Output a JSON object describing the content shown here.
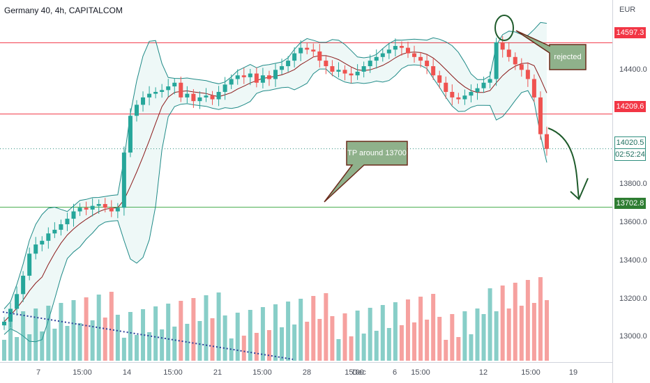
{
  "header": {
    "title": "Germany 40, 4h, CAPITALCOM"
  },
  "currency": "EUR",
  "colors": {
    "up": "#26a69a",
    "down": "#ef5350",
    "support": "#4caf50",
    "resistance": "#f23645",
    "band": "#1f8a87",
    "basis": "#8b1a1a",
    "callout": "#8fb18b"
  },
  "annotations": {
    "rejected": "rejected",
    "tp": "TP around 13700"
  },
  "price_tags": {
    "resistance_high": "14597.3",
    "resistance_mid": "14209.6",
    "last_price": "14020.5",
    "countdown": "02:52:24",
    "support_target": "13702.8"
  },
  "chart_data": {
    "type": "candlestick",
    "title": "Germany 40, 4h, CAPITALCOM",
    "y_axis_label": "EUR",
    "y_ticks": [
      "14400.0",
      "13800.0",
      "13600.0",
      "13400.0",
      "13200.0",
      "13000.0"
    ],
    "x_ticks": [
      "7",
      "15:00",
      "14",
      "15:00",
      "21",
      "15:00",
      "28",
      "15:00",
      "Dec",
      "6",
      "15:00",
      "12",
      "15:00",
      "19"
    ],
    "ylim": [
      12860,
      14830
    ],
    "horizontal_levels": [
      {
        "value": 14597.3,
        "kind": "resistance"
      },
      {
        "value": 14209.6,
        "kind": "resistance"
      },
      {
        "value": 13702.8,
        "kind": "support"
      }
    ],
    "last_price": 14020.5,
    "series_path_closes": [
      13080,
      13150,
      13230,
      13330,
      13450,
      13500,
      13520,
      13560,
      13580,
      13610,
      13640,
      13680,
      13700,
      13690,
      13710,
      13720,
      13700,
      13680,
      13700,
      14000,
      14200,
      14260,
      14300,
      14320,
      14330,
      14340,
      14360,
      14380,
      14300,
      14320,
      14280,
      14300,
      14310,
      14290,
      14330,
      14370,
      14400,
      14420,
      14410,
      14430,
      14380,
      14420,
      14400,
      14450,
      14470,
      14500,
      14540,
      14570,
      14560,
      14550,
      14500,
      14470,
      14440,
      14450,
      14430,
      14420,
      14440,
      14470,
      14500,
      14520,
      14540,
      14560,
      14580,
      14570,
      14540,
      14520,
      14500,
      14470,
      14420,
      14380,
      14330,
      14300,
      14290,
      14310,
      14330,
      14350,
      14380,
      14400,
      14600,
      14560,
      14520,
      14480,
      14450,
      14400,
      14300,
      14100,
      14020
    ],
    "volume_profile": "higher on down bars late in series"
  }
}
